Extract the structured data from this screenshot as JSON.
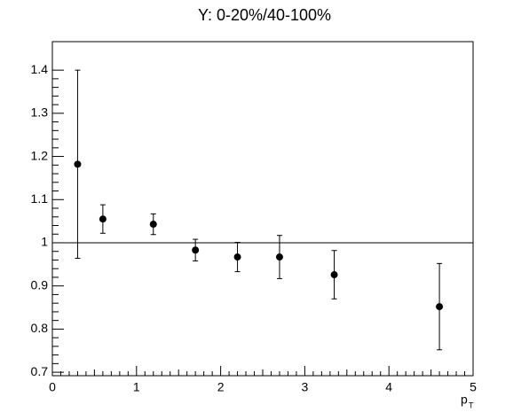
{
  "chart_data": {
    "type": "errorbar",
    "title": "Y: 0-20%/40-100%",
    "x_label": "p",
    "x_label_subscript": "T",
    "x": [
      0.3,
      0.6,
      1.2,
      1.7,
      2.2,
      2.7,
      3.35,
      4.6
    ],
    "values": [
      1.182,
      1.055,
      1.043,
      0.983,
      0.967,
      0.967,
      0.926,
      0.852
    ],
    "errors": [
      0.218,
      0.033,
      0.024,
      0.025,
      0.034,
      0.05,
      0.056,
      0.1
    ],
    "color": "#000000",
    "reference_line": 1,
    "xlim": [
      0,
      5
    ],
    "xticks": [
      0,
      1,
      2,
      3,
      4,
      5
    ],
    "ylim": [
      0.692,
      1.466
    ],
    "yticks": [
      0.7,
      0.8,
      0.9,
      1,
      1.1,
      1.2,
      1.3,
      1.4
    ]
  }
}
